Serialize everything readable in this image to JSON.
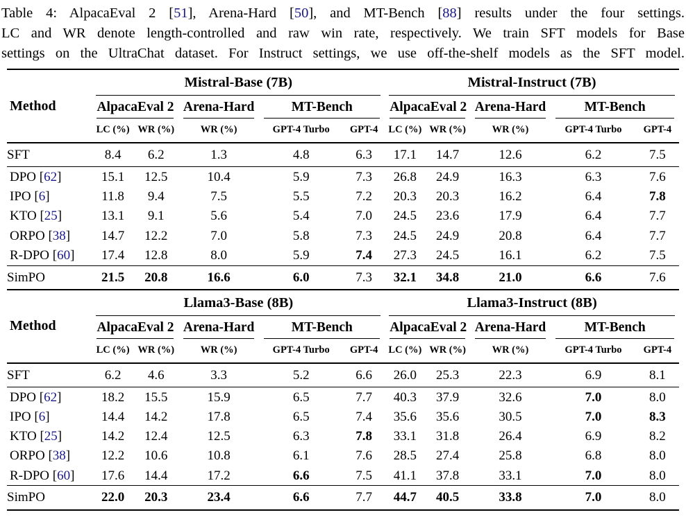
{
  "colors": {
    "citation": "#191989",
    "text": "#000000",
    "background": "#ffffff",
    "rule": "#000000"
  },
  "caption": {
    "lines": [
      [
        {
          "t": "Table 4: AlpacaEval 2 ["
        },
        {
          "t": "51",
          "cite": true
        },
        {
          "t": "], Arena-Hard ["
        },
        {
          "t": "50",
          "cite": true
        },
        {
          "t": "], and MT-Bench ["
        },
        {
          "t": "88",
          "cite": true
        },
        {
          "t": "] results under the four settings."
        }
      ],
      [
        {
          "t": "LC and WR denote length-controlled and raw win rate, respectively. We train SFT models for Base"
        }
      ],
      [
        {
          "t": "settings on the UltraChat dataset. For Instruct settings, we use off-the-shelf models as the SFT model."
        }
      ]
    ]
  },
  "table_common": {
    "method_header": "Method",
    "benchmarks": [
      "AlpacaEval 2",
      "Arena-Hard",
      "MT-Bench"
    ],
    "benchmark_spans": [
      2,
      1,
      2
    ],
    "metrics": [
      "LC (%)",
      "WR (%)",
      "WR (%)",
      "GPT-4 Turbo",
      "GPT-4"
    ]
  },
  "tables": [
    {
      "groups": [
        "Mistral-Base (7B)",
        "Mistral-Instruct (7B)"
      ],
      "sections": [
        {
          "rows": [
            {
              "method": "SFT",
              "cite": "",
              "values": [
                "8.4",
                "6.2",
                "1.3",
                "4.8",
                "6.3",
                "17.1",
                "14.7",
                "12.6",
                "6.2",
                "7.5"
              ],
              "bold": []
            }
          ]
        },
        {
          "rows": [
            {
              "method": "DPO",
              "cite": "62",
              "values": [
                "15.1",
                "12.5",
                "10.4",
                "5.9",
                "7.3",
                "26.8",
                "24.9",
                "16.3",
                "6.3",
                "7.6"
              ],
              "bold": []
            },
            {
              "method": "IPO",
              "cite": "6",
              "values": [
                "11.8",
                "9.4",
                "7.5",
                "5.5",
                "7.2",
                "20.3",
                "20.3",
                "16.2",
                "6.4",
                "7.8"
              ],
              "bold": [
                9
              ]
            },
            {
              "method": "KTO",
              "cite": "25",
              "values": [
                "13.1",
                "9.1",
                "5.6",
                "5.4",
                "7.0",
                "24.5",
                "23.6",
                "17.9",
                "6.4",
                "7.7"
              ],
              "bold": []
            },
            {
              "method": "ORPO",
              "cite": "38",
              "values": [
                "14.7",
                "12.2",
                "7.0",
                "5.8",
                "7.3",
                "24.5",
                "24.9",
                "20.8",
                "6.4",
                "7.7"
              ],
              "bold": []
            },
            {
              "method": "R-DPO",
              "cite": "60",
              "values": [
                "17.4",
                "12.8",
                "8.0",
                "5.9",
                "7.4",
                "27.3",
                "24.5",
                "16.1",
                "6.2",
                "7.5"
              ],
              "bold": [
                4
              ]
            }
          ]
        },
        {
          "rows": [
            {
              "method": "SimPO",
              "cite": "",
              "values": [
                "21.5",
                "20.8",
                "16.6",
                "6.0",
                "7.3",
                "32.1",
                "34.8",
                "21.0",
                "6.6",
                "7.6"
              ],
              "bold": [
                0,
                1,
                2,
                3,
                5,
                6,
                7,
                8
              ]
            }
          ]
        }
      ]
    },
    {
      "groups": [
        "Llama3-Base (8B)",
        "Llama3-Instruct (8B)"
      ],
      "sections": [
        {
          "rows": [
            {
              "method": "SFT",
              "cite": "",
              "values": [
                "6.2",
                "4.6",
                "3.3",
                "5.2",
                "6.6",
                "26.0",
                "25.3",
                "22.3",
                "6.9",
                "8.1"
              ],
              "bold": []
            }
          ]
        },
        {
          "rows": [
            {
              "method": "DPO",
              "cite": "62",
              "values": [
                "18.2",
                "15.5",
                "15.9",
                "6.5",
                "7.7",
                "40.3",
                "37.9",
                "32.6",
                "7.0",
                "8.0"
              ],
              "bold": [
                8
              ]
            },
            {
              "method": "IPO",
              "cite": "6",
              "values": [
                "14.4",
                "14.2",
                "17.8",
                "6.5",
                "7.4",
                "35.6",
                "35.6",
                "30.5",
                "7.0",
                "8.3"
              ],
              "bold": [
                8,
                9
              ]
            },
            {
              "method": "KTO",
              "cite": "25",
              "values": [
                "14.2",
                "12.4",
                "12.5",
                "6.3",
                "7.8",
                "33.1",
                "31.8",
                "26.4",
                "6.9",
                "8.2"
              ],
              "bold": [
                4
              ]
            },
            {
              "method": "ORPO",
              "cite": "38",
              "values": [
                "12.2",
                "10.6",
                "10.8",
                "6.1",
                "7.6",
                "28.5",
                "27.4",
                "25.8",
                "6.8",
                "8.0"
              ],
              "bold": []
            },
            {
              "method": "R-DPO",
              "cite": "60",
              "values": [
                "17.6",
                "14.4",
                "17.2",
                "6.6",
                "7.5",
                "41.1",
                "37.8",
                "33.1",
                "7.0",
                "8.0"
              ],
              "bold": [
                3,
                8
              ]
            }
          ]
        },
        {
          "rows": [
            {
              "method": "SimPO",
              "cite": "",
              "values": [
                "22.0",
                "20.3",
                "23.4",
                "6.6",
                "7.7",
                "44.7",
                "40.5",
                "33.8",
                "7.0",
                "8.0"
              ],
              "bold": [
                0,
                1,
                2,
                3,
                5,
                6,
                7,
                8
              ]
            }
          ]
        }
      ]
    }
  ]
}
